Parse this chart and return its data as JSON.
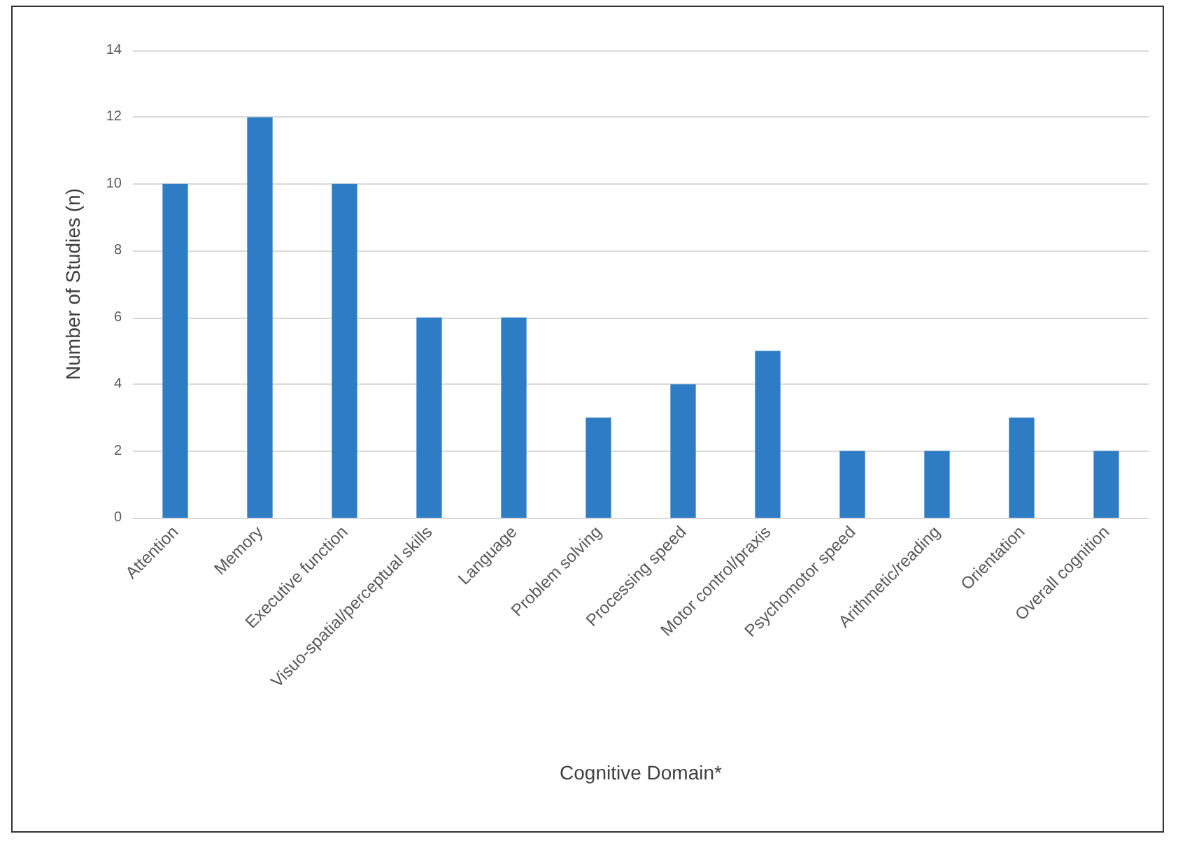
{
  "chart_data": {
    "type": "bar",
    "xlabel": "Cognitive Domain*",
    "ylabel": "Number of Studies (n)",
    "categories": [
      "Attention",
      "Memory",
      "Executive function",
      "Visuo-spatial/perceptual skills",
      "Language",
      "Problem solving",
      "Processing speed",
      "Motor control/praxis",
      "Psychomotor speed",
      "Arithmetic/reading",
      "Orientation",
      "Overall cognition"
    ],
    "values": [
      10,
      12,
      10,
      6,
      6,
      3,
      4,
      5,
      2,
      2,
      3,
      2
    ],
    "color": "#2e7dc4",
    "ylim": [
      0,
      14
    ],
    "yticks": [
      0,
      2,
      4,
      6,
      8,
      10,
      12,
      14
    ],
    "grid": "y"
  }
}
